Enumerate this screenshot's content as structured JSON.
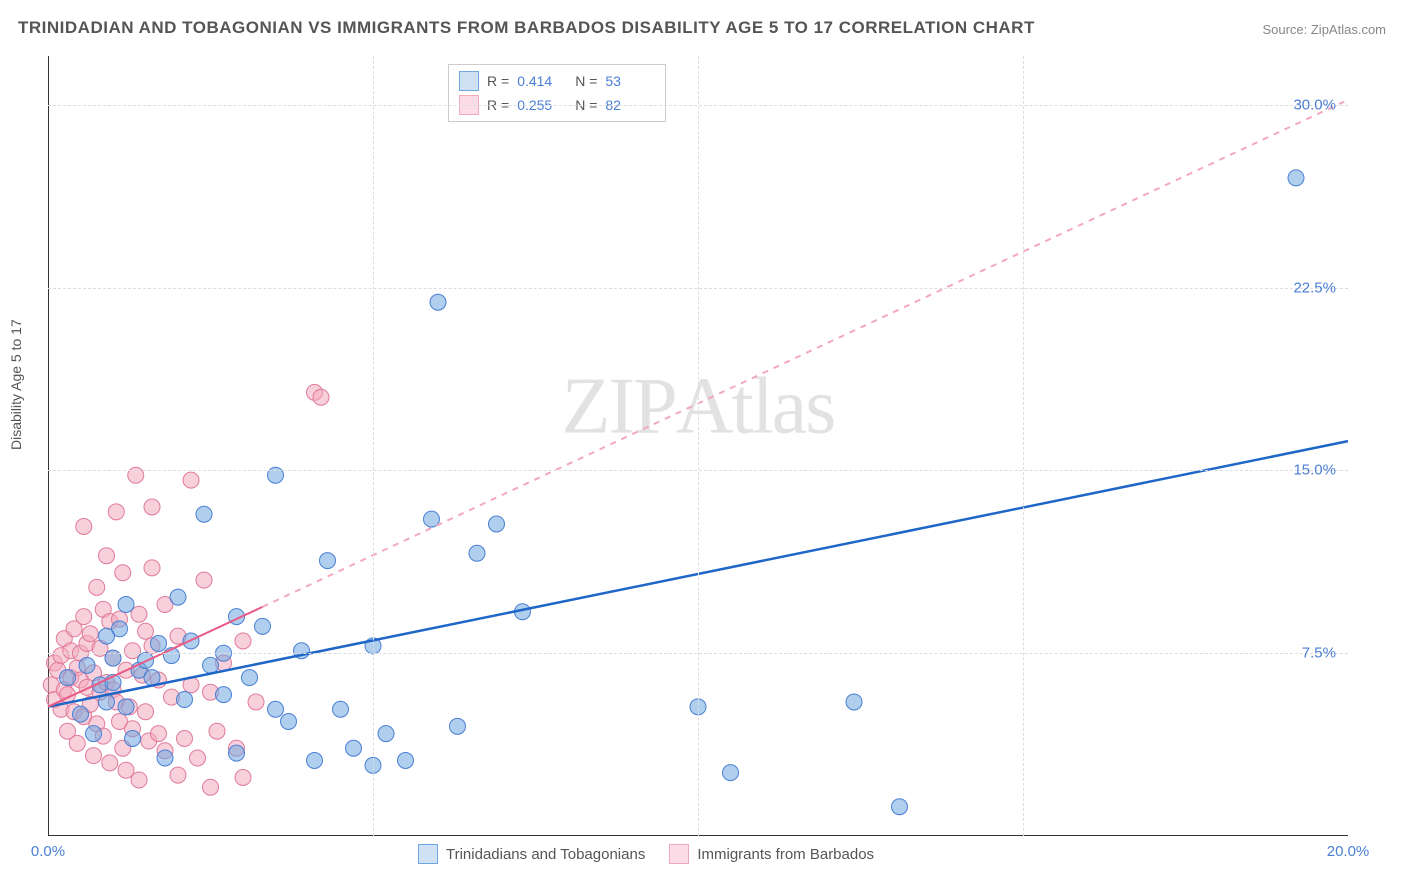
{
  "title": "TRINIDADIAN AND TOBAGONIAN VS IMMIGRANTS FROM BARBADOS DISABILITY AGE 5 TO 17 CORRELATION CHART",
  "source": "Source: ZipAtlas.com",
  "y_axis_title": "Disability Age 5 to 17",
  "watermark": "ZIPAtlas",
  "chart": {
    "type": "scatter",
    "xlim": [
      0,
      20
    ],
    "ylim": [
      0,
      32
    ],
    "xticks": [
      0,
      20
    ],
    "xticklabels": [
      "0.0%",
      "20.0%"
    ],
    "yticks": [
      7.5,
      15.0,
      22.5,
      30.0
    ],
    "yticklabels": [
      "7.5%",
      "15.0%",
      "22.5%",
      "30.0%"
    ],
    "grid_color": "#dddddd",
    "grid_dash": "4 4",
    "background_color": "#ffffff",
    "axis_line_color": "#333333",
    "tick_label_color": "#4a7fd4",
    "marker_radius": 8,
    "marker_opacity": 0.55,
    "series": [
      {
        "id": "trinidad",
        "label": "Trinidadians and Tobagonians",
        "color": "#6fa8e0",
        "border": "#4a7fd4",
        "R": 0.414,
        "N": 53,
        "trend": {
          "x1": 0,
          "y1": 5.3,
          "x2": 20,
          "y2": 16.2,
          "solid_until_x": 20,
          "stroke": "#1e66c7",
          "width": 2.5
        },
        "points": [
          [
            0.3,
            6.5
          ],
          [
            0.5,
            5.0
          ],
          [
            0.6,
            7.0
          ],
          [
            0.7,
            4.2
          ],
          [
            0.8,
            6.2
          ],
          [
            0.9,
            5.5
          ],
          [
            1.0,
            7.3
          ],
          [
            1.1,
            8.5
          ],
          [
            1.2,
            5.3
          ],
          [
            1.2,
            9.5
          ],
          [
            1.3,
            4.0
          ],
          [
            1.4,
            6.8
          ],
          [
            1.5,
            7.2
          ],
          [
            1.6,
            6.5
          ],
          [
            1.8,
            3.2
          ],
          [
            1.9,
            7.4
          ],
          [
            2.0,
            9.8
          ],
          [
            2.1,
            5.6
          ],
          [
            2.2,
            8.0
          ],
          [
            2.4,
            13.2
          ],
          [
            2.5,
            7.0
          ],
          [
            2.7,
            5.8
          ],
          [
            2.7,
            7.5
          ],
          [
            2.9,
            3.4
          ],
          [
            2.9,
            9.0
          ],
          [
            3.1,
            6.5
          ],
          [
            3.3,
            8.6
          ],
          [
            3.5,
            14.8
          ],
          [
            3.5,
            5.2
          ],
          [
            3.7,
            4.7
          ],
          [
            3.9,
            7.6
          ],
          [
            4.1,
            3.1
          ],
          [
            4.3,
            11.3
          ],
          [
            4.5,
            5.2
          ],
          [
            4.7,
            3.6
          ],
          [
            5.0,
            7.8
          ],
          [
            5.0,
            2.9
          ],
          [
            5.2,
            4.2
          ],
          [
            5.5,
            3.1
          ],
          [
            5.9,
            13.0
          ],
          [
            6.0,
            21.9
          ],
          [
            6.3,
            4.5
          ],
          [
            6.6,
            11.6
          ],
          [
            6.9,
            12.8
          ],
          [
            7.3,
            9.2
          ],
          [
            10.0,
            5.3
          ],
          [
            10.5,
            2.6
          ],
          [
            13.1,
            1.2
          ],
          [
            12.4,
            5.5
          ],
          [
            19.2,
            27.0
          ],
          [
            1.0,
            6.3
          ],
          [
            1.7,
            7.9
          ],
          [
            0.9,
            8.2
          ]
        ]
      },
      {
        "id": "barbados",
        "label": "Immigrants from Barbados",
        "color": "#f2a9bd",
        "border": "#e07b9a",
        "R": 0.255,
        "N": 82,
        "trend": {
          "x1": 0,
          "y1": 5.3,
          "x2": 3.3,
          "y2": 9.4,
          "dash_to_x": 20,
          "dash_to_y": 30.2,
          "stroke_solid": "#e85b86",
          "stroke_dash": "#f2a9bd",
          "width": 2
        },
        "points": [
          [
            0.05,
            6.2
          ],
          [
            0.1,
            5.6
          ],
          [
            0.1,
            7.1
          ],
          [
            0.15,
            6.8
          ],
          [
            0.2,
            5.2
          ],
          [
            0.2,
            7.4
          ],
          [
            0.25,
            6.0
          ],
          [
            0.25,
            8.1
          ],
          [
            0.3,
            5.8
          ],
          [
            0.3,
            4.3
          ],
          [
            0.35,
            6.5
          ],
          [
            0.35,
            7.6
          ],
          [
            0.4,
            5.1
          ],
          [
            0.4,
            8.5
          ],
          [
            0.45,
            6.9
          ],
          [
            0.45,
            3.8
          ],
          [
            0.5,
            7.5
          ],
          [
            0.5,
            6.4
          ],
          [
            0.55,
            4.9
          ],
          [
            0.55,
            9.0
          ],
          [
            0.6,
            6.1
          ],
          [
            0.6,
            7.9
          ],
          [
            0.65,
            5.4
          ],
          [
            0.65,
            8.3
          ],
          [
            0.7,
            3.3
          ],
          [
            0.7,
            6.7
          ],
          [
            0.75,
            4.6
          ],
          [
            0.75,
            10.2
          ],
          [
            0.8,
            5.9
          ],
          [
            0.8,
            7.7
          ],
          [
            0.85,
            9.3
          ],
          [
            0.85,
            4.1
          ],
          [
            0.9,
            6.3
          ],
          [
            0.9,
            11.5
          ],
          [
            0.95,
            8.8
          ],
          [
            0.95,
            3.0
          ],
          [
            1.0,
            6.0
          ],
          [
            1.0,
            7.3
          ],
          [
            1.05,
            5.5
          ],
          [
            1.1,
            4.7
          ],
          [
            1.1,
            8.9
          ],
          [
            1.15,
            10.8
          ],
          [
            1.15,
            3.6
          ],
          [
            1.2,
            6.8
          ],
          [
            1.2,
            2.7
          ],
          [
            1.25,
            5.3
          ],
          [
            1.3,
            7.6
          ],
          [
            1.3,
            4.4
          ],
          [
            1.35,
            14.8
          ],
          [
            1.4,
            9.1
          ],
          [
            1.4,
            2.3
          ],
          [
            1.45,
            6.6
          ],
          [
            1.5,
            5.1
          ],
          [
            1.5,
            8.4
          ],
          [
            1.55,
            3.9
          ],
          [
            1.6,
            7.8
          ],
          [
            1.6,
            11.0
          ],
          [
            1.7,
            4.2
          ],
          [
            1.7,
            6.4
          ],
          [
            1.8,
            3.5
          ],
          [
            1.8,
            9.5
          ],
          [
            1.9,
            5.7
          ],
          [
            2.0,
            8.2
          ],
          [
            2.0,
            2.5
          ],
          [
            2.1,
            4.0
          ],
          [
            2.2,
            14.6
          ],
          [
            2.2,
            6.2
          ],
          [
            2.3,
            3.2
          ],
          [
            2.4,
            10.5
          ],
          [
            2.5,
            2.0
          ],
          [
            2.5,
            5.9
          ],
          [
            2.6,
            4.3
          ],
          [
            2.7,
            7.1
          ],
          [
            2.9,
            3.6
          ],
          [
            3.0,
            8.0
          ],
          [
            3.0,
            2.4
          ],
          [
            3.2,
            5.5
          ],
          [
            4.1,
            18.2
          ],
          [
            4.2,
            18.0
          ],
          [
            1.05,
            13.3
          ],
          [
            0.55,
            12.7
          ],
          [
            1.6,
            13.5
          ]
        ]
      }
    ]
  },
  "legend_top": {
    "rows": [
      {
        "swatch_fill": "#cfe1f5",
        "swatch_border": "#6fa8e0",
        "r_label": "R =",
        "r_val": "0.414",
        "n_label": "N =",
        "n_val": "53"
      },
      {
        "swatch_fill": "#fcdde7",
        "swatch_border": "#f2a9bd",
        "r_label": "R =",
        "r_val": "0.255",
        "n_label": "N =",
        "n_val": "82"
      }
    ]
  },
  "legend_bottom": {
    "items": [
      {
        "swatch_fill": "#cfe1f5",
        "swatch_border": "#6fa8e0",
        "label": "Trinidadians and Tobagonians"
      },
      {
        "swatch_fill": "#fcdde7",
        "swatch_border": "#f2a9bd",
        "label": "Immigrants from Barbados"
      }
    ]
  }
}
